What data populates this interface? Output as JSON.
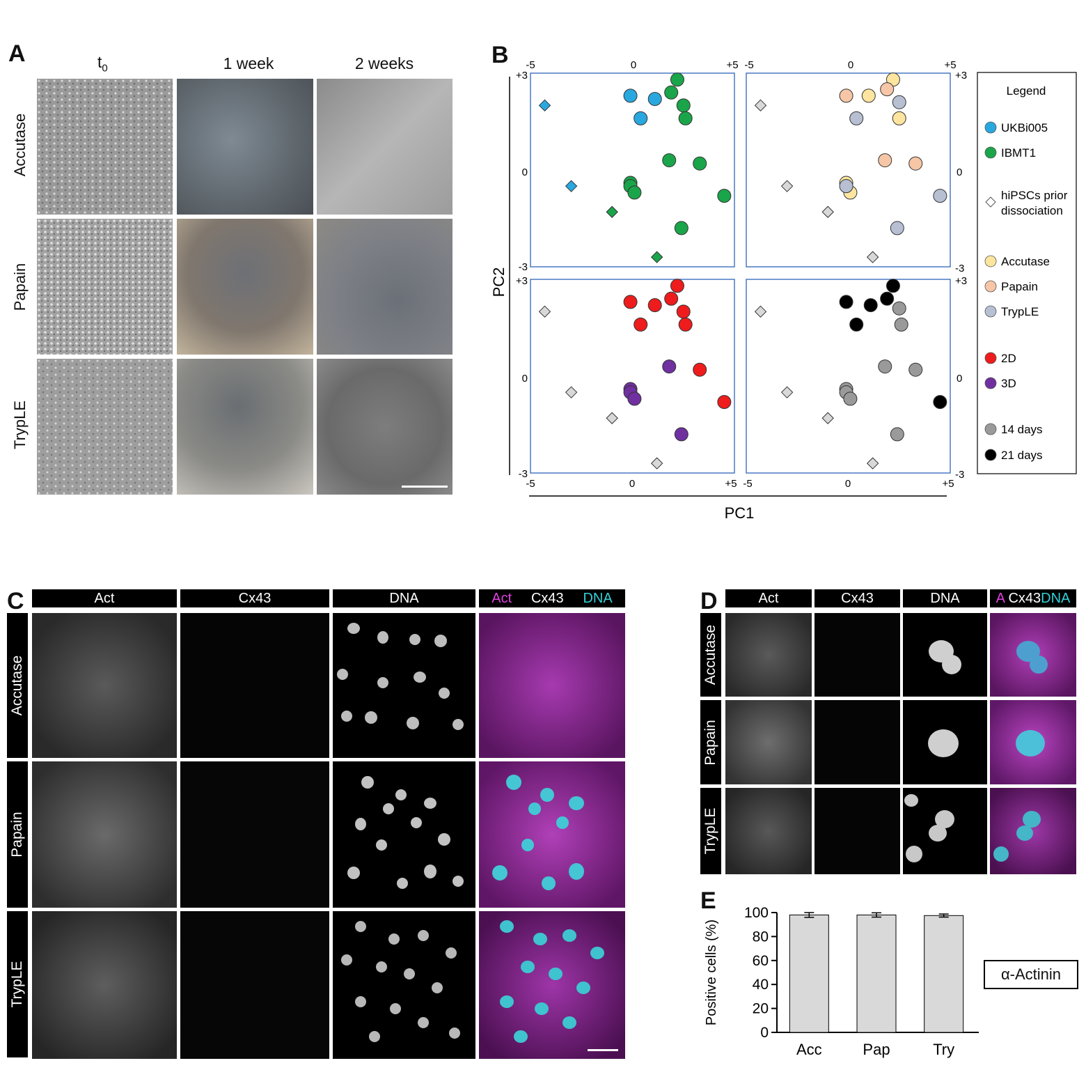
{
  "panel_a": {
    "letter": "A",
    "columns": [
      "t0",
      "1 week",
      "2 weeks"
    ],
    "col_t0_main": "t",
    "col_t0_sub": "0",
    "rows": [
      "Accutase",
      "Papain",
      "TrypLE"
    ]
  },
  "panel_b": {
    "letter": "B",
    "top_ticks": [
      "-5",
      "0",
      "+5",
      "-5",
      "0",
      "+5"
    ],
    "bottom_ticks": [
      "-5",
      "0",
      "+5",
      "-5",
      "0",
      "+5"
    ],
    "left_ticks": [
      "+3",
      "0",
      "-3",
      "+3",
      "0",
      "-3"
    ],
    "right_ticks": [
      "+3",
      "0",
      "-3",
      "+3",
      "0",
      "-3"
    ],
    "xlabel": "PC1",
    "ylabel": "PC2",
    "legend": {
      "title": "Legend",
      "items": [
        {
          "label": "UKBi005",
          "color": "#29a8e0",
          "marker": "circle"
        },
        {
          "label": "IBMT1",
          "color": "#1aa54a",
          "marker": "circle"
        },
        {
          "label": "hiPSCs prior",
          "label2": "dissociation",
          "color": "#ffffff",
          "marker": "diamond"
        },
        {
          "label": "Accutase",
          "color": "#fde5a0",
          "marker": "circle"
        },
        {
          "label": "Papain",
          "color": "#f6c6a6",
          "marker": "circle"
        },
        {
          "label": "TrypLE",
          "color": "#b6c0d2",
          "marker": "circle"
        },
        {
          "label": "2D",
          "color": "#ee1c1c",
          "marker": "circle"
        },
        {
          "label": "3D",
          "color": "#7030a0",
          "marker": "circle"
        },
        {
          "label": "14 days",
          "color": "#9a9a9a",
          "marker": "circle"
        },
        {
          "label": "21 days",
          "color": "#000000",
          "marker": "circle"
        }
      ]
    }
  },
  "panel_c": {
    "letter": "C",
    "headers": [
      "Act",
      "Cx43",
      "DNA"
    ],
    "merge": {
      "a": "Act",
      "b": "Cx43",
      "c": "DNA"
    },
    "rows": [
      "Accutase",
      "Papain",
      "TrypLE"
    ]
  },
  "panel_d": {
    "letter": "D",
    "headers": [
      "Act",
      "Cx43",
      "DNA"
    ],
    "merge": {
      "a": "A",
      "b": "Cx43",
      "c": "DNA"
    },
    "rows": [
      "Accutase",
      "Papain",
      "TrypLE"
    ]
  },
  "panel_e": {
    "letter": "E",
    "box_label": "α-Actinin"
  },
  "chart_data": [
    {
      "type": "scatter",
      "title": "",
      "xlabel": "PC1",
      "ylabel": "PC2",
      "xlim": [
        -5,
        5
      ],
      "ylim": [
        -3,
        3
      ],
      "subplots": [
        {
          "series": [
            {
              "name": "UKBi005",
              "marker": "circle",
              "color": "#29a8e0",
              "points": [
                [
                  -0.1,
                  2.3
                ],
                [
                  1.1,
                  2.2
                ],
                [
                  0.4,
                  1.6
                ]
              ]
            },
            {
              "name": "UKBi005",
              "marker": "diamond",
              "color": "#29a8e0",
              "points": [
                [
                  -4.3,
                  2.0
                ],
                [
                  -3.0,
                  -0.5
                ]
              ]
            },
            {
              "name": "IBMT1",
              "marker": "circle",
              "color": "#1aa54a",
              "points": [
                [
                  2.2,
                  2.8
                ],
                [
                  1.9,
                  2.4
                ],
                [
                  2.5,
                  2.0
                ],
                [
                  2.6,
                  1.6
                ],
                [
                  1.8,
                  0.3
                ],
                [
                  3.3,
                  0.2
                ],
                [
                  -0.1,
                  -0.4
                ],
                [
                  -0.1,
                  -0.5
                ],
                [
                  0.1,
                  -0.7
                ],
                [
                  4.5,
                  -0.8
                ],
                [
                  2.4,
                  -1.8
                ]
              ]
            },
            {
              "name": "IBMT1",
              "marker": "diamond",
              "color": "#1aa54a",
              "points": [
                [
                  -1.0,
                  -1.3
                ],
                [
                  1.2,
                  -2.7
                ]
              ]
            }
          ]
        },
        {
          "series": [
            {
              "name": "hiPSCs prior dissociation",
              "marker": "diamond",
              "color": "#d8d8d8",
              "points": [
                [
                  -4.3,
                  2.0
                ],
                [
                  -3.0,
                  -0.5
                ],
                [
                  -1.0,
                  -1.3
                ],
                [
                  1.2,
                  -2.7
                ]
              ]
            },
            {
              "name": "Accutase",
              "marker": "circle",
              "color": "#fde5a0",
              "points": [
                [
                  2.2,
                  2.8
                ],
                [
                  1.0,
                  2.3
                ],
                [
                  2.5,
                  1.6
                ],
                [
                  -0.1,
                  -0.4
                ],
                [
                  0.1,
                  -0.7
                ]
              ]
            },
            {
              "name": "Papain",
              "marker": "circle",
              "color": "#f6c6a6",
              "points": [
                [
                  -0.1,
                  2.3
                ],
                [
                  1.9,
                  2.5
                ],
                [
                  1.8,
                  0.3
                ],
                [
                  3.3,
                  0.2
                ]
              ]
            },
            {
              "name": "TrypLE",
              "marker": "circle",
              "color": "#b6c0d2",
              "points": [
                [
                  2.5,
                  2.1
                ],
                [
                  0.4,
                  1.6
                ],
                [
                  -0.1,
                  -0.5
                ],
                [
                  4.5,
                  -0.8
                ],
                [
                  2.4,
                  -1.8
                ]
              ]
            }
          ]
        },
        {
          "series": [
            {
              "name": "hiPSCs prior dissociation",
              "marker": "diamond",
              "color": "#d8d8d8",
              "points": [
                [
                  -4.3,
                  2.0
                ],
                [
                  -3.0,
                  -0.5
                ],
                [
                  -1.0,
                  -1.3
                ],
                [
                  1.2,
                  -2.7
                ]
              ]
            },
            {
              "name": "2D",
              "marker": "circle",
              "color": "#ee1c1c",
              "points": [
                [
                  2.2,
                  2.8
                ],
                [
                  -0.1,
                  2.3
                ],
                [
                  1.1,
                  2.2
                ],
                [
                  1.9,
                  2.4
                ],
                [
                  2.5,
                  2.0
                ],
                [
                  0.4,
                  1.6
                ],
                [
                  2.6,
                  1.6
                ],
                [
                  3.3,
                  0.2
                ],
                [
                  4.5,
                  -0.8
                ]
              ]
            },
            {
              "name": "3D",
              "marker": "circle",
              "color": "#7030a0",
              "points": [
                [
                  1.8,
                  0.3
                ],
                [
                  -0.1,
                  -0.4
                ],
                [
                  -0.1,
                  -0.5
                ],
                [
                  0.1,
                  -0.7
                ],
                [
                  2.4,
                  -1.8
                ]
              ]
            }
          ]
        },
        {
          "series": [
            {
              "name": "hiPSCs prior dissociation",
              "marker": "diamond",
              "color": "#d8d8d8",
              "points": [
                [
                  -4.3,
                  2.0
                ],
                [
                  -3.0,
                  -0.5
                ],
                [
                  -1.0,
                  -1.3
                ],
                [
                  1.2,
                  -2.7
                ]
              ]
            },
            {
              "name": "14 days",
              "marker": "circle",
              "color": "#9a9a9a",
              "points": [
                [
                  2.5,
                  2.1
                ],
                [
                  2.6,
                  1.6
                ],
                [
                  1.8,
                  0.3
                ],
                [
                  3.3,
                  0.2
                ],
                [
                  -0.1,
                  -0.4
                ],
                [
                  -0.1,
                  -0.5
                ],
                [
                  0.1,
                  -0.7
                ],
                [
                  2.4,
                  -1.8
                ]
              ]
            },
            {
              "name": "21 days",
              "marker": "circle",
              "color": "#000000",
              "points": [
                [
                  2.2,
                  2.8
                ],
                [
                  -0.1,
                  2.3
                ],
                [
                  1.1,
                  2.2
                ],
                [
                  1.9,
                  2.4
                ],
                [
                  0.4,
                  1.6
                ],
                [
                  4.5,
                  -0.8
                ]
              ]
            }
          ]
        }
      ]
    },
    {
      "type": "bar",
      "title": "",
      "categories": [
        "Acc",
        "Pap",
        "Try"
      ],
      "values": [
        98,
        98,
        97.5
      ],
      "errors": [
        2,
        1.8,
        1.3
      ],
      "ylabel": "Positive cells (%)",
      "xlabel": "",
      "ylim": [
        0,
        100
      ],
      "yticks": [
        "0",
        "20",
        "40",
        "60",
        "80",
        "100"
      ]
    }
  ]
}
